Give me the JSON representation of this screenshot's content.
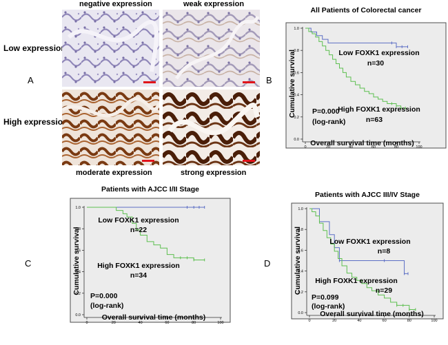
{
  "panel_letters": {
    "a": "A",
    "b": "B",
    "c": "C",
    "d": "D"
  },
  "histology": {
    "col_titles": [
      "negative expression",
      "weak expression"
    ],
    "bottom_titles": [
      "moderate expression",
      "strong expression"
    ],
    "row_labels": [
      "Low  expression",
      "High  expression"
    ],
    "colors": {
      "hematoxylin": "#b7b0d2",
      "dab": "#6b3414",
      "scalebar": "#e0131a"
    }
  },
  "chart_data": [
    {
      "id": "B",
      "type": "line",
      "title": "All Patients of Colorectal cancer",
      "xlabel": "Overall survival time (months)",
      "ylabel": "Cumulative survival",
      "xlim": [
        0,
        100
      ],
      "ylim": [
        0.0,
        1.0
      ],
      "xticks": [
        "0",
        "20",
        "40",
        "60",
        "80",
        "100"
      ],
      "yticks": [
        "0.0",
        "0.2",
        "0.4",
        "0.6",
        "0.8",
        "1.0"
      ],
      "pvalue": "P=0.000",
      "test": "(log-rank)",
      "series": [
        {
          "name": "Low FOXK1 expression",
          "n": "n=30",
          "color": "#5b6ec4",
          "x": [
            0,
            5,
            10,
            15,
            20,
            28,
            30,
            36,
            45,
            55,
            66,
            76,
            80,
            85,
            90
          ],
          "y": [
            1.0,
            0.967,
            0.933,
            0.9,
            0.867,
            0.867,
            0.867,
            0.867,
            0.867,
            0.867,
            0.867,
            0.867,
            0.833,
            0.833,
            0.833
          ]
        },
        {
          "name": "High FOXK1 expression",
          "n": "n=63",
          "color": "#5cbf4f",
          "x": [
            0,
            3,
            6,
            9,
            12,
            15,
            18,
            21,
            24,
            27,
            30,
            33,
            36,
            40,
            44,
            48,
            52,
            56,
            60,
            64,
            68,
            72,
            76,
            80,
            84,
            88
          ],
          "y": [
            1.0,
            0.97,
            0.95,
            0.92,
            0.88,
            0.84,
            0.8,
            0.76,
            0.72,
            0.68,
            0.64,
            0.6,
            0.56,
            0.52,
            0.49,
            0.46,
            0.43,
            0.41,
            0.38,
            0.36,
            0.34,
            0.32,
            0.32,
            0.3,
            0.28,
            0.28
          ]
        }
      ]
    },
    {
      "id": "C",
      "type": "line",
      "title": "Patients with AJCC I/II Stage",
      "xlabel": "Overall survival time (months)",
      "ylabel": "Cumulative survival",
      "xlim": [
        0,
        100
      ],
      "ylim": [
        0.0,
        1.0
      ],
      "xticks": [
        "0",
        "20",
        "40",
        "60",
        "80",
        "100"
      ],
      "yticks": [
        "0.0",
        "0.2",
        "0.4",
        "0.6",
        "0.8",
        "1.0"
      ],
      "pvalue": "P=0.000",
      "test": "(log-rank)",
      "series": [
        {
          "name": "Low FOXK1 expression",
          "n": "n=22",
          "color": "#5b6ec4",
          "x": [
            0,
            40,
            50,
            60,
            70,
            75,
            80,
            84,
            88
          ],
          "y": [
            1.0,
            1.0,
            1.0,
            1.0,
            1.0,
            1.0,
            1.0,
            1.0,
            1.0
          ]
        },
        {
          "name": "High FOXK1 expression",
          "n": "n=34",
          "color": "#5cbf4f",
          "x": [
            0,
            18,
            22,
            27,
            30,
            34,
            37,
            40,
            45,
            50,
            55,
            60,
            65,
            70,
            75,
            80,
            88
          ],
          "y": [
            1.0,
            1.0,
            0.97,
            0.94,
            0.91,
            0.85,
            0.79,
            0.74,
            0.68,
            0.65,
            0.62,
            0.56,
            0.53,
            0.53,
            0.53,
            0.51,
            0.51
          ]
        }
      ]
    },
    {
      "id": "D",
      "type": "line",
      "title": "Patients with AJCC III/IV Stage",
      "xlabel": "Overall survival time (months)",
      "ylabel": "Cumulative survival",
      "xlim": [
        0,
        100
      ],
      "ylim": [
        0.0,
        1.0
      ],
      "xticks": [
        "0",
        "20",
        "40",
        "60",
        "80",
        "100"
      ],
      "yticks": [
        "0.0",
        "0.2",
        "0.4",
        "0.6",
        "0.8",
        "1.0"
      ],
      "pvalue": "P=0.099",
      "test": "(log-rank)",
      "series": [
        {
          "name": "Low FOXK1 expression",
          "n": "n=8",
          "color": "#5b6ec4",
          "x": [
            0,
            8,
            12,
            16,
            20,
            24,
            60,
            76,
            79
          ],
          "y": [
            1.0,
            0.875,
            0.875,
            0.75,
            0.625,
            0.5,
            0.5,
            0.375,
            0.375
          ]
        },
        {
          "name": "High FOXK1 expression",
          "n": "n=29",
          "color": "#5cbf4f",
          "x": [
            0,
            2,
            5,
            8,
            11,
            14,
            17,
            20,
            23,
            26,
            30,
            34,
            38,
            42,
            46,
            50,
            55,
            60,
            65,
            70,
            75,
            80,
            85
          ],
          "y": [
            1.0,
            0.97,
            0.93,
            0.86,
            0.79,
            0.72,
            0.66,
            0.59,
            0.52,
            0.45,
            0.38,
            0.34,
            0.31,
            0.28,
            0.24,
            0.21,
            0.17,
            0.14,
            0.1,
            0.07,
            0.07,
            0.03,
            0.03
          ]
        }
      ]
    }
  ]
}
